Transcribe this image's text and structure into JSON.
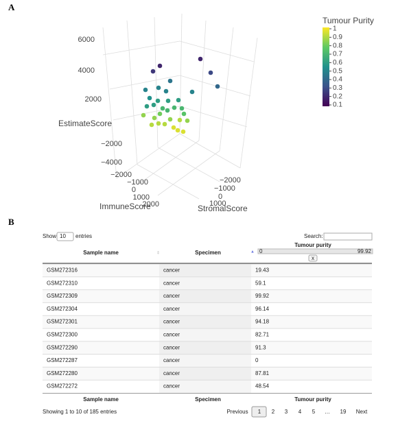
{
  "panel_a": {
    "label": "A",
    "plot": {
      "z_label": "EstimateScore",
      "x_label": "ImmuneScore",
      "y_label": "StromalScore",
      "z_ticks": [
        "6000",
        "4000",
        "2000",
        "−2000",
        "−4000"
      ],
      "x_ticks": [
        "−2000",
        "−1000",
        "0",
        "1000",
        "2000"
      ],
      "y_ticks": [
        "−2000",
        "−1000",
        "0",
        "1000"
      ],
      "colorbar": {
        "title": "Tumour Purity",
        "range": [
          0.1,
          1
        ],
        "ticks": [
          1,
          0.9,
          0.8,
          0.7,
          0.6,
          0.5,
          0.4,
          0.3,
          0.2,
          0.1
        ]
      },
      "points": [
        0.2,
        0.25,
        0.2,
        0.3,
        0.4,
        0.45,
        0.5,
        0.5,
        0.5,
        0.5,
        0.55,
        0.6,
        0.6,
        0.6,
        0.6,
        0.6,
        0.7,
        0.7,
        0.7,
        0.7,
        0.75,
        0.8,
        0.85,
        0.85,
        0.85,
        0.9,
        0.85,
        0.9,
        0.9,
        0.95,
        0.95,
        0.95,
        0.9
      ]
    }
  },
  "panel_b": {
    "label": "B",
    "controls": {
      "show": "Show",
      "length": "10",
      "entries": "entries",
      "search": "Search:"
    },
    "header": [
      "Sample name",
      "Specimen",
      "Tumour purity"
    ],
    "slider": {
      "min": "0",
      "max": "99.92",
      "clear": "x"
    },
    "rows": [
      [
        "GSM272316",
        "cancer",
        "19.43"
      ],
      [
        "GSM272310",
        "cancer",
        "59.1"
      ],
      [
        "GSM272309",
        "cancer",
        "99.92"
      ],
      [
        "GSM272304",
        "cancer",
        "96.14"
      ],
      [
        "GSM272301",
        "cancer",
        "94.18"
      ],
      [
        "GSM272300",
        "cancer",
        "82.71"
      ],
      [
        "GSM272290",
        "cancer",
        "91.3"
      ],
      [
        "GSM272287",
        "cancer",
        "0"
      ],
      [
        "GSM272280",
        "cancer",
        "87.81"
      ],
      [
        "GSM272272",
        "cancer",
        "48.54"
      ]
    ],
    "footer": [
      "Sample name",
      "Specimen",
      "Tumour purity"
    ],
    "info": "Showing 1 to 10 of 185 entries",
    "pagination": [
      "Previous",
      "1",
      "2",
      "3",
      "4",
      "5",
      "…",
      "19",
      "Next"
    ]
  }
}
